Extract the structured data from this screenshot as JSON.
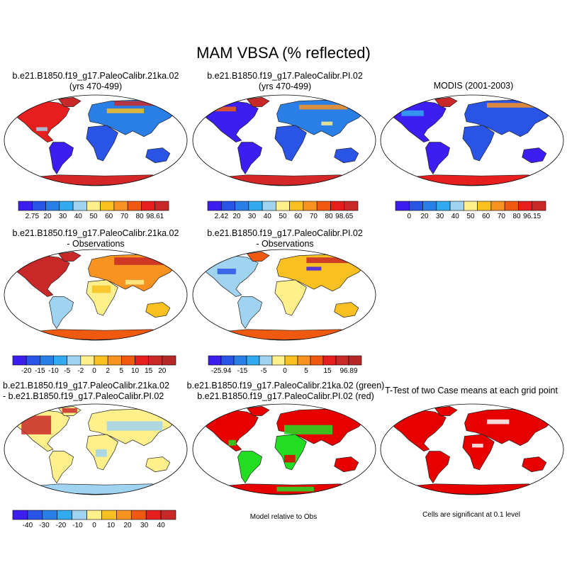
{
  "chart_data": {
    "type": "heatmap",
    "title": "MAM VBSA (% reflected)",
    "panels": [
      {
        "id": "p1",
        "title_line1": "b.e21.B1850.f19_g17.PaleoCalibr.21ka.02",
        "title_line2": "(yrs 470-499)",
        "colorbar": {
          "ticks": [
            "2.75",
            "20",
            "30",
            "40",
            "50",
            "60",
            "70",
            "80",
            "98.61"
          ],
          "colors": [
            "#3d1ef0",
            "#2a54e6",
            "#2a7fe6",
            "#32aaf0",
            "#9fd3f0",
            "#fff08c",
            "#f8c020",
            "#f89220",
            "#f05a10",
            "#e61e1e",
            "#c82828"
          ]
        }
      },
      {
        "id": "p2",
        "title_line1": "b.e21.B1850.f19_g17.PaleoCalibr.PI.02",
        "title_line2": "(yrs 470-499)",
        "colorbar": {
          "ticks": [
            "2.42",
            "20",
            "30",
            "40",
            "50",
            "60",
            "70",
            "80",
            "98.65"
          ],
          "colors": [
            "#3d1ef0",
            "#2a54e6",
            "#2a7fe6",
            "#32aaf0",
            "#9fd3f0",
            "#fff08c",
            "#f8c020",
            "#f89220",
            "#f05a10",
            "#e61e1e",
            "#c82828"
          ]
        }
      },
      {
        "id": "p3",
        "title_line1": "MODIS (2001-2003)",
        "title_line2": "",
        "colorbar": {
          "ticks": [
            "0",
            "20",
            "30",
            "40",
            "50",
            "60",
            "70",
            "80",
            "96.15"
          ],
          "colors": [
            "#3d1ef0",
            "#2a54e6",
            "#2a7fe6",
            "#32aaf0",
            "#9fd3f0",
            "#fff08c",
            "#f8c020",
            "#f89220",
            "#f05a10",
            "#e61e1e",
            "#c82828"
          ]
        }
      },
      {
        "id": "p4",
        "title_line1": "b.e21.B1850.f19_g17.PaleoCalibr.21ka.02",
        "title_line2": "- Observations",
        "colorbar": {
          "ticks": [
            "-20",
            "-15",
            "-10",
            "-5",
            "-2",
            "0",
            "2",
            "5",
            "10",
            "15",
            "20"
          ],
          "colors": [
            "#3d1ef0",
            "#2a54e6",
            "#2a7fe6",
            "#32aaf0",
            "#9fd3f0",
            "#fff08c",
            "#f8c020",
            "#f89220",
            "#f05a10",
            "#e61e1e",
            "#c82828",
            "#b42828"
          ]
        }
      },
      {
        "id": "p5",
        "title_line1": "b.e21.B1850.f19_g17.PaleoCalibr.PI.02",
        "title_line2": "- Observations",
        "colorbar": {
          "ticks": [
            "-25.94",
            "-15",
            "-5",
            "0",
            "5",
            "15",
            "96.89"
          ],
          "colors": [
            "#3d1ef0",
            "#2a54e6",
            "#2a7fe6",
            "#32aaf0",
            "#9fd3f0",
            "#fff08c",
            "#f8c020",
            "#f89220",
            "#f05a10",
            "#e61e1e",
            "#c82828",
            "#b42828"
          ]
        }
      },
      {
        "id": "p6",
        "title_line1": "b.e21.B1850.f19_g17.PaleoCalibr.21ka.02",
        "title_line2": "- b.e21.B1850.f19_g17.PaleoCalibr.PI.02",
        "colorbar": {
          "ticks": [
            "-40",
            "-30",
            "-20",
            "-10",
            "0",
            "10",
            "20",
            "30",
            "40"
          ],
          "colors": [
            "#3d1ef0",
            "#2a54e6",
            "#2a7fe6",
            "#32aaf0",
            "#9fd3f0",
            "#fff08c",
            "#f8c020",
            "#f89220",
            "#f05a10",
            "#e61e1e",
            "#c82828"
          ]
        }
      },
      {
        "id": "p7",
        "title_line1": "b.e21.B1850.f19_g17.PaleoCalibr.21ka.02 (green)",
        "title_line2": "b.e21.B1850.f19_g17.PaleoCalibr.PI.02 (red)",
        "note": "Model relative to Obs"
      },
      {
        "id": "p8",
        "title_line1": "T-Test of two Case means at each grid point",
        "title_line2": "",
        "note": "Cells are significant at 0.1 level"
      }
    ]
  }
}
